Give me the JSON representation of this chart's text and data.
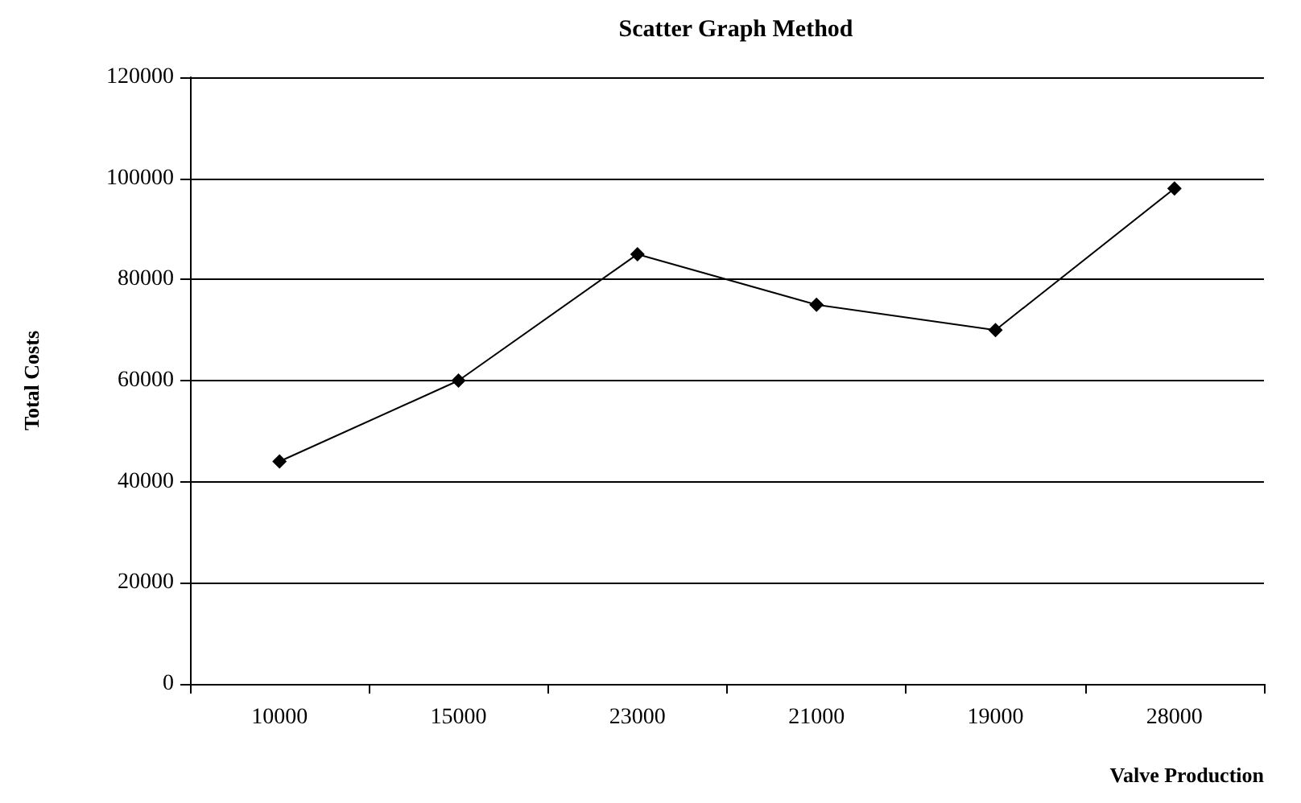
{
  "chart_data": {
    "type": "line",
    "title": "Scatter Graph Method",
    "xlabel": "Valve Production",
    "ylabel": "Total Costs",
    "categories": [
      "10000",
      "15000",
      "23000",
      "21000",
      "19000",
      "28000"
    ],
    "series": [
      {
        "color": "#000000",
        "values": [
          44000,
          60000,
          85000,
          75000,
          70000,
          98000
        ]
      }
    ],
    "ylim": [
      0,
      120000
    ],
    "yticks": [
      0,
      20000,
      40000,
      60000,
      80000,
      100000,
      120000
    ],
    "grid": "y",
    "marker": "diamond",
    "line_style": "solid"
  }
}
